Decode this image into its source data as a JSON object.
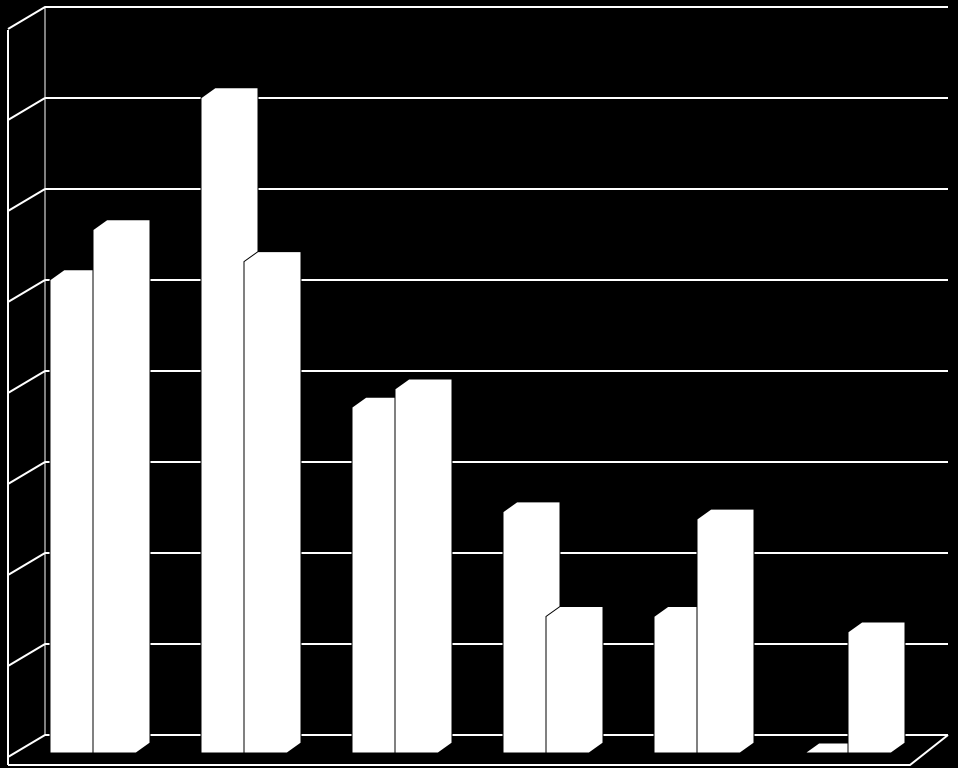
{
  "chart_data": {
    "type": "bar3d",
    "categories": [
      null,
      null,
      null,
      null,
      null,
      null
    ],
    "series": [
      {
        "color": "#ffffff",
        "values": [
          5.2,
          7.2,
          3.8,
          2.65,
          1.5,
          0
        ]
      },
      {
        "color": "#ffffff",
        "values": [
          5.75,
          5.4,
          4.0,
          1.5,
          2.57,
          1.33
        ]
      }
    ],
    "ylim": [
      0,
      8
    ],
    "yticks": [
      0,
      1,
      2,
      3,
      4,
      5,
      6,
      7,
      8
    ],
    "grid": true
  }
}
